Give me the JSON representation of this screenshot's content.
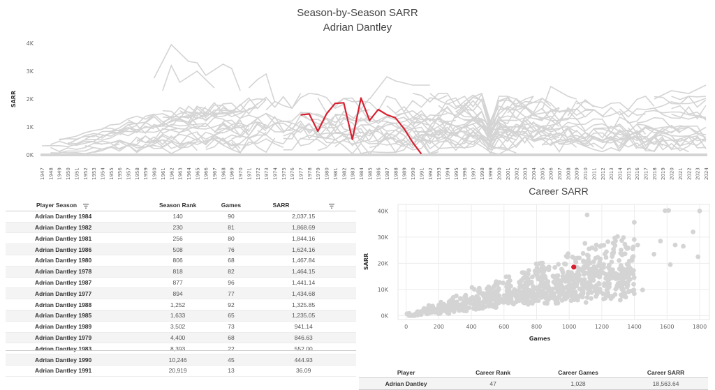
{
  "line_chart": {
    "title": "Season-by-Season SARR",
    "subtitle": "Adrian Dantley",
    "ylabel": "SARR",
    "colors": {
      "highlight": "#d7202f",
      "background": "#d4d4d4"
    }
  },
  "season_table": {
    "headers": [
      "Player Season",
      "Season Rank",
      "Games",
      "SARR"
    ],
    "rows": [
      [
        "Adrian Dantley 1984",
        "140",
        "90",
        "2,037.15"
      ],
      [
        "Adrian Dantley 1982",
        "230",
        "81",
        "1,868.69"
      ],
      [
        "Adrian Dantley 1981",
        "256",
        "80",
        "1,844.16"
      ],
      [
        "Adrian Dantley 1986",
        "508",
        "76",
        "1,624.16"
      ],
      [
        "Adrian Dantley 1980",
        "806",
        "68",
        "1,467.84"
      ],
      [
        "Adrian Dantley 1978",
        "818",
        "82",
        "1,464.15"
      ],
      [
        "Adrian Dantley 1987",
        "877",
        "96",
        "1,441.14"
      ],
      [
        "Adrian Dantley 1977",
        "894",
        "77",
        "1,434.68"
      ],
      [
        "Adrian Dantley 1988",
        "1,252",
        "92",
        "1,325.85"
      ],
      [
        "Adrian Dantley 1985",
        "1,633",
        "65",
        "1,235.05"
      ],
      [
        "Adrian Dantley 1989",
        "3,502",
        "73",
        "941.14"
      ],
      [
        "Adrian Dantley 1979",
        "4,400",
        "68",
        "846.63"
      ],
      [
        "Adrian Dantley 1983",
        "8,393",
        "22",
        "552.00"
      ],
      [
        "Adrian Dantley 1990",
        "10,246",
        "45",
        "444.93"
      ],
      [
        "Adrian Dantley 1991",
        "20,919",
        "13",
        "36.09"
      ]
    ]
  },
  "scatter_chart": {
    "title": "Career SARR",
    "xlabel": "Games",
    "ylabel": "SARR"
  },
  "career_table": {
    "headers": [
      "Player",
      "Career Rank",
      "Career Games",
      "Career SARR"
    ],
    "row": [
      "Adrian Dantley",
      "47",
      "1,028",
      "18,563.64"
    ]
  },
  "chart_data": [
    {
      "type": "line",
      "title": "Season-by-Season SARR",
      "subtitle": "Adrian Dantley",
      "xlabel": "",
      "ylabel": "SARR",
      "x_range": [
        1947,
        2024
      ],
      "ylim": [
        0,
        4000
      ],
      "y_ticks": [
        "0K",
        "1K",
        "2K",
        "3K",
        "4K"
      ],
      "grid": false,
      "background_series": "all other player seasons (gray)",
      "series": [
        {
          "name": "Adrian Dantley",
          "color": "#d7202f",
          "x": [
            1977,
            1978,
            1979,
            1980,
            1981,
            1982,
            1983,
            1984,
            1985,
            1986,
            1987,
            1988,
            1989,
            1990,
            1991
          ],
          "y": [
            1434.68,
            1464.15,
            846.63,
            1467.84,
            1844.16,
            1868.69,
            552.0,
            2037.15,
            1235.05,
            1624.16,
            1441.14,
            1325.85,
            941.14,
            444.93,
            36.09
          ]
        }
      ]
    },
    {
      "type": "scatter",
      "title": "Career SARR",
      "xlabel": "Games",
      "ylabel": "SARR",
      "xlim": [
        -50,
        1860
      ],
      "ylim": [
        -1500,
        42500
      ],
      "x_ticks": [
        0,
        200,
        400,
        600,
        800,
        1000,
        1200,
        1400,
        1600,
        1800
      ],
      "y_ticks": [
        "0K",
        "10K",
        "20K",
        "30K",
        "40K"
      ],
      "grid": true,
      "highlight": {
        "name": "Adrian Dantley",
        "x": 1028,
        "y": 18563.64,
        "color": "#d7202f"
      },
      "notable_points": [
        {
          "x": 1610,
          "y": 40200
        },
        {
          "x": 1588,
          "y": 40100
        },
        {
          "x": 1110,
          "y": 38500
        },
        {
          "x": 1800,
          "y": 40000
        },
        {
          "x": 1760,
          "y": 32000
        },
        {
          "x": 1790,
          "y": 22500
        },
        {
          "x": 1650,
          "y": 27000
        },
        {
          "x": 1700,
          "y": 26500
        },
        {
          "x": 1560,
          "y": 28500
        },
        {
          "x": 1420,
          "y": 27000
        },
        {
          "x": 1390,
          "y": 25500
        },
        {
          "x": 1330,
          "y": 23500
        },
        {
          "x": 1520,
          "y": 23500
        },
        {
          "x": 1620,
          "y": 19500
        },
        {
          "x": 1450,
          "y": 9800
        },
        {
          "x": 1100,
          "y": 20500
        },
        {
          "x": 1050,
          "y": 22000
        }
      ]
    }
  ]
}
